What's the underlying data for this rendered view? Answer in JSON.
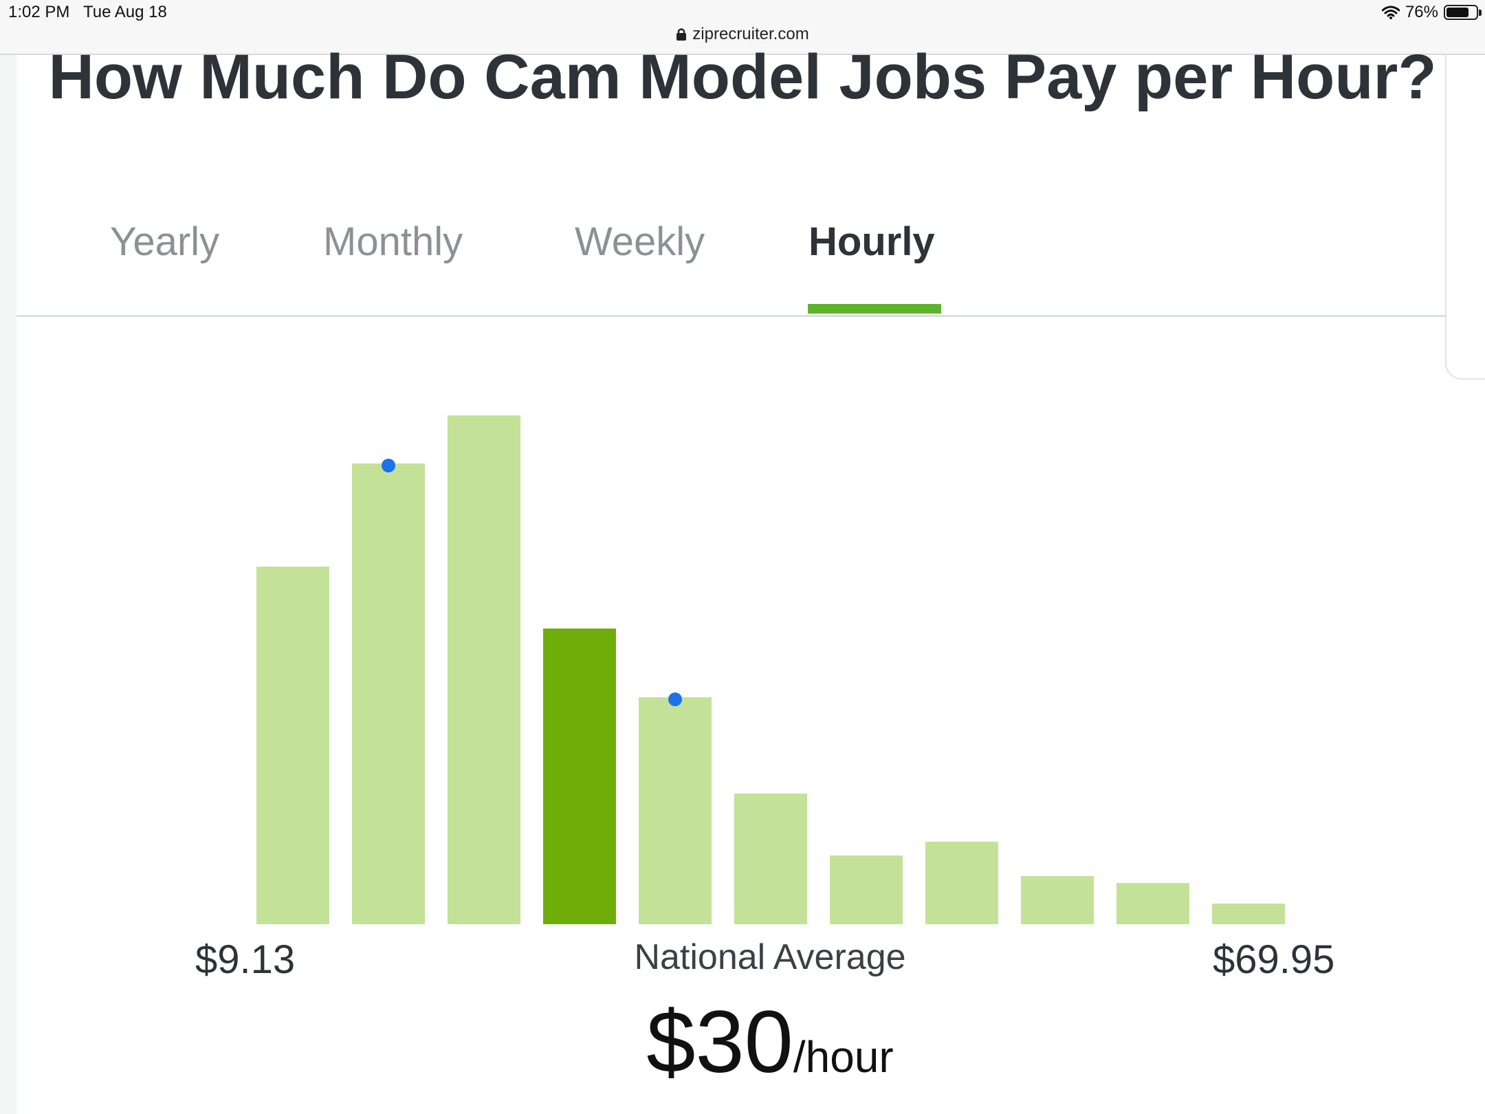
{
  "status_bar": {
    "time": "1:02 PM   Tue Aug 18",
    "battery": "76%",
    "battery_level": 0.76,
    "url": "ziprecruiter.com"
  },
  "page": {
    "title": "How Much Do Cam Model Jobs Pay per Hour?"
  },
  "tabs": [
    {
      "label": "Yearly",
      "active": false
    },
    {
      "label": "Monthly",
      "active": false
    },
    {
      "label": "Weekly",
      "active": false
    },
    {
      "label": "Hourly",
      "active": true
    }
  ],
  "colors": {
    "bar": "#c4e198",
    "bar_highlight": "#6fae0a",
    "marker": "#1a73e8",
    "accent": "#5db42b"
  },
  "chart_data": {
    "type": "bar",
    "values": [
      52,
      67,
      74,
      43,
      33,
      19,
      10,
      12,
      7,
      6,
      3
    ],
    "highlight_index": 3,
    "marker_indices": [
      1,
      4
    ],
    "min_label": "$9.13",
    "max_label": "$69.95",
    "average_label": "National Average",
    "average_value": "$30",
    "average_unit": "/hour"
  }
}
